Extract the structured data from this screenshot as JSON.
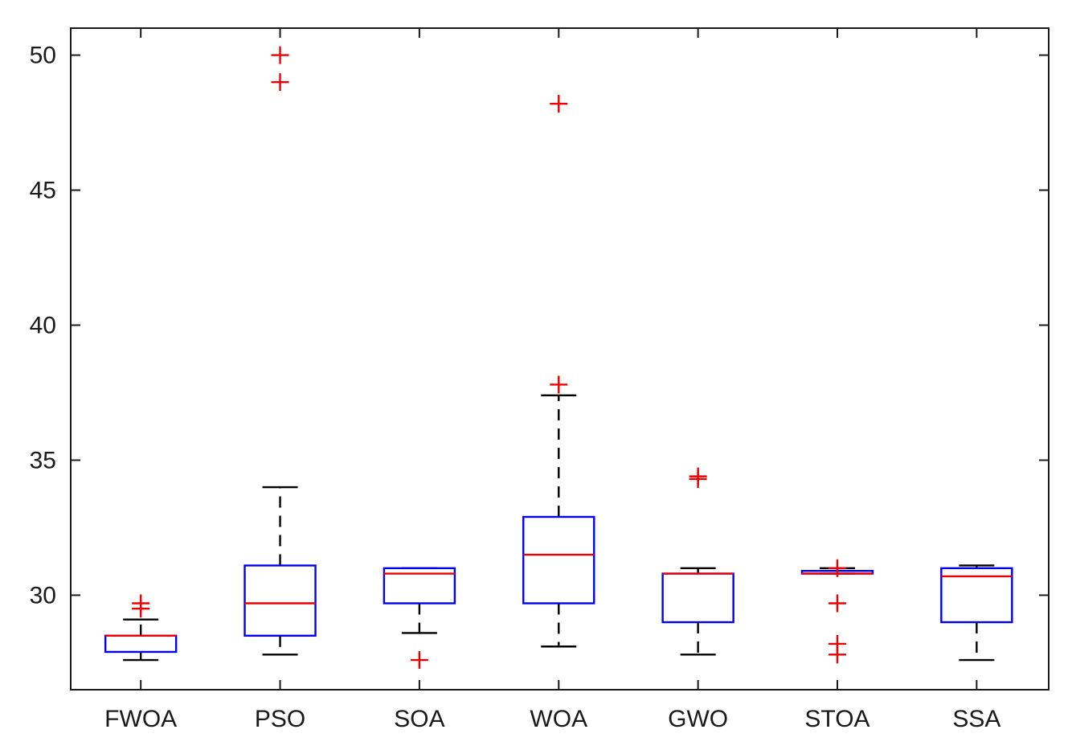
{
  "chart_data": {
    "type": "box",
    "title": "",
    "xlabel": "",
    "ylabel": "",
    "categories": [
      "FWOA",
      "PSO",
      "SOA",
      "WOA",
      "GWO",
      "STOA",
      "SSA"
    ],
    "ylim": [
      26.5,
      51
    ],
    "yticks": [
      30,
      35,
      40,
      45,
      50
    ],
    "ytick_labels": [
      "30",
      "35",
      "40",
      "45",
      "50"
    ],
    "grid": false,
    "colors": {
      "box": "#0000ee",
      "median": "#ee0000",
      "whisker": "#000000",
      "outlier": "#ee0000",
      "axes": "#1a1a1a"
    },
    "boxes": [
      {
        "name": "FWOA",
        "whisker_low": 27.6,
        "q1": 27.9,
        "median": 28.5,
        "q3": 28.5,
        "whisker_high": 29.1,
        "outliers": [
          29.5,
          29.7
        ]
      },
      {
        "name": "PSO",
        "whisker_low": 27.8,
        "q1": 28.5,
        "median": 29.7,
        "q3": 31.1,
        "whisker_high": 34.0,
        "outliers": [
          49.0,
          50.0
        ]
      },
      {
        "name": "SOA",
        "whisker_low": 28.6,
        "q1": 29.7,
        "median": 30.8,
        "q3": 31.0,
        "whisker_high": 31.0,
        "outliers": [
          27.6
        ]
      },
      {
        "name": "WOA",
        "whisker_low": 28.1,
        "q1": 29.7,
        "median": 31.5,
        "q3": 32.9,
        "whisker_high": 37.4,
        "outliers": [
          37.8,
          48.2
        ]
      },
      {
        "name": "GWO",
        "whisker_low": 27.8,
        "q1": 29.0,
        "median": 30.8,
        "q3": 30.8,
        "whisker_high": 31.0,
        "outliers": [
          34.3,
          34.4
        ]
      },
      {
        "name": "STOA",
        "whisker_low": 30.8,
        "q1": 30.8,
        "median": 30.8,
        "q3": 30.9,
        "whisker_high": 31.0,
        "outliers": [
          31.0,
          29.7,
          28.2,
          27.8
        ]
      },
      {
        "name": "SSA",
        "whisker_low": 27.6,
        "q1": 29.0,
        "median": 30.7,
        "q3": 31.0,
        "whisker_high": 31.1,
        "outliers": []
      }
    ]
  }
}
